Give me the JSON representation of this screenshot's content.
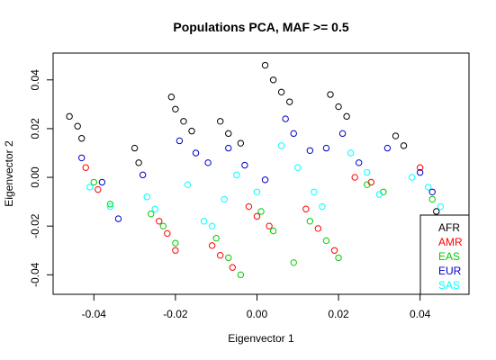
{
  "chart_data": {
    "type": "scatter",
    "title": "Populations PCA, MAF >= 0.5",
    "xlabel": "Eigenvector 1",
    "ylabel": "Eigenvector 2",
    "xlim": [
      -0.05,
      0.052
    ],
    "ylim": [
      -0.048,
      0.051
    ],
    "x_ticks": [
      -0.04,
      -0.02,
      0.0,
      0.02,
      0.04
    ],
    "x_tick_labels": [
      "-0.04",
      "-0.02",
      "0.00",
      "0.02",
      "0.04"
    ],
    "y_ticks": [
      -0.04,
      -0.02,
      0.0,
      0.02,
      0.04
    ],
    "y_tick_labels": [
      "-0.04",
      "-0.02",
      "0.00",
      "0.02",
      "0.04"
    ],
    "marker": "open-circle",
    "grid": false,
    "legend_position": "bottom-right",
    "series": [
      {
        "name": "AFR",
        "color": "#000000",
        "points": [
          [
            -0.046,
            0.025
          ],
          [
            -0.044,
            0.021
          ],
          [
            -0.043,
            0.016
          ],
          [
            -0.03,
            0.012
          ],
          [
            -0.029,
            0.006
          ],
          [
            -0.021,
            0.033
          ],
          [
            -0.02,
            0.028
          ],
          [
            -0.018,
            0.023
          ],
          [
            -0.016,
            0.019
          ],
          [
            -0.009,
            0.023
          ],
          [
            -0.007,
            0.018
          ],
          [
            -0.004,
            0.014
          ],
          [
            0.002,
            0.046
          ],
          [
            0.004,
            0.04
          ],
          [
            0.006,
            0.035
          ],
          [
            0.008,
            0.031
          ],
          [
            0.018,
            0.034
          ],
          [
            0.02,
            0.029
          ],
          [
            0.022,
            0.025
          ],
          [
            0.034,
            0.017
          ],
          [
            0.036,
            0.013
          ],
          [
            0.044,
            -0.014
          ]
        ]
      },
      {
        "name": "AMR",
        "color": "#ff0000",
        "points": [
          [
            -0.042,
            0.004
          ],
          [
            -0.039,
            -0.005
          ],
          [
            -0.024,
            -0.018
          ],
          [
            -0.022,
            -0.023
          ],
          [
            -0.02,
            -0.03
          ],
          [
            -0.011,
            -0.028
          ],
          [
            -0.009,
            -0.032
          ],
          [
            -0.006,
            -0.037
          ],
          [
            -0.002,
            -0.012
          ],
          [
            0.0,
            -0.016
          ],
          [
            0.003,
            -0.02
          ],
          [
            0.012,
            -0.013
          ],
          [
            0.015,
            -0.021
          ],
          [
            0.019,
            -0.03
          ],
          [
            0.024,
            0.0
          ],
          [
            0.028,
            -0.002
          ],
          [
            0.04,
            0.004
          ]
        ]
      },
      {
        "name": "EAS",
        "color": "#00cc00",
        "points": [
          [
            -0.04,
            -0.002
          ],
          [
            -0.036,
            -0.011
          ],
          [
            -0.026,
            -0.015
          ],
          [
            -0.023,
            -0.02
          ],
          [
            -0.02,
            -0.027
          ],
          [
            -0.01,
            -0.025
          ],
          [
            -0.007,
            -0.033
          ],
          [
            -0.004,
            -0.04
          ],
          [
            0.001,
            -0.014
          ],
          [
            0.004,
            -0.022
          ],
          [
            0.009,
            -0.035
          ],
          [
            0.013,
            -0.018
          ],
          [
            0.017,
            -0.026
          ],
          [
            0.02,
            -0.033
          ],
          [
            0.027,
            -0.003
          ],
          [
            0.031,
            -0.006
          ],
          [
            0.043,
            -0.009
          ]
        ]
      },
      {
        "name": "EUR",
        "color": "#0000cc",
        "points": [
          [
            -0.043,
            0.008
          ],
          [
            -0.038,
            -0.002
          ],
          [
            -0.034,
            -0.017
          ],
          [
            -0.028,
            0.001
          ],
          [
            -0.019,
            0.015
          ],
          [
            -0.015,
            0.01
          ],
          [
            -0.012,
            0.006
          ],
          [
            -0.007,
            0.012
          ],
          [
            -0.003,
            0.005
          ],
          [
            0.002,
            -0.001
          ],
          [
            0.007,
            0.024
          ],
          [
            0.009,
            0.018
          ],
          [
            0.013,
            0.011
          ],
          [
            0.017,
            0.012
          ],
          [
            0.021,
            0.018
          ],
          [
            0.025,
            0.006
          ],
          [
            0.032,
            0.012
          ],
          [
            0.04,
            0.002
          ],
          [
            0.043,
            -0.006
          ]
        ]
      },
      {
        "name": "SAS",
        "color": "#00ffff",
        "points": [
          [
            -0.041,
            -0.004
          ],
          [
            -0.036,
            -0.012
          ],
          [
            -0.027,
            -0.008
          ],
          [
            -0.025,
            -0.013
          ],
          [
            -0.017,
            -0.003
          ],
          [
            -0.013,
            -0.018
          ],
          [
            -0.011,
            -0.02
          ],
          [
            -0.008,
            -0.009
          ],
          [
            -0.005,
            0.001
          ],
          [
            0.0,
            -0.006
          ],
          [
            0.006,
            0.013
          ],
          [
            0.01,
            0.004
          ],
          [
            0.014,
            -0.006
          ],
          [
            0.016,
            -0.012
          ],
          [
            0.023,
            0.01
          ],
          [
            0.027,
            0.002
          ],
          [
            0.03,
            -0.007
          ],
          [
            0.038,
            0.0
          ],
          [
            0.042,
            -0.004
          ],
          [
            0.045,
            -0.012
          ]
        ]
      }
    ]
  }
}
